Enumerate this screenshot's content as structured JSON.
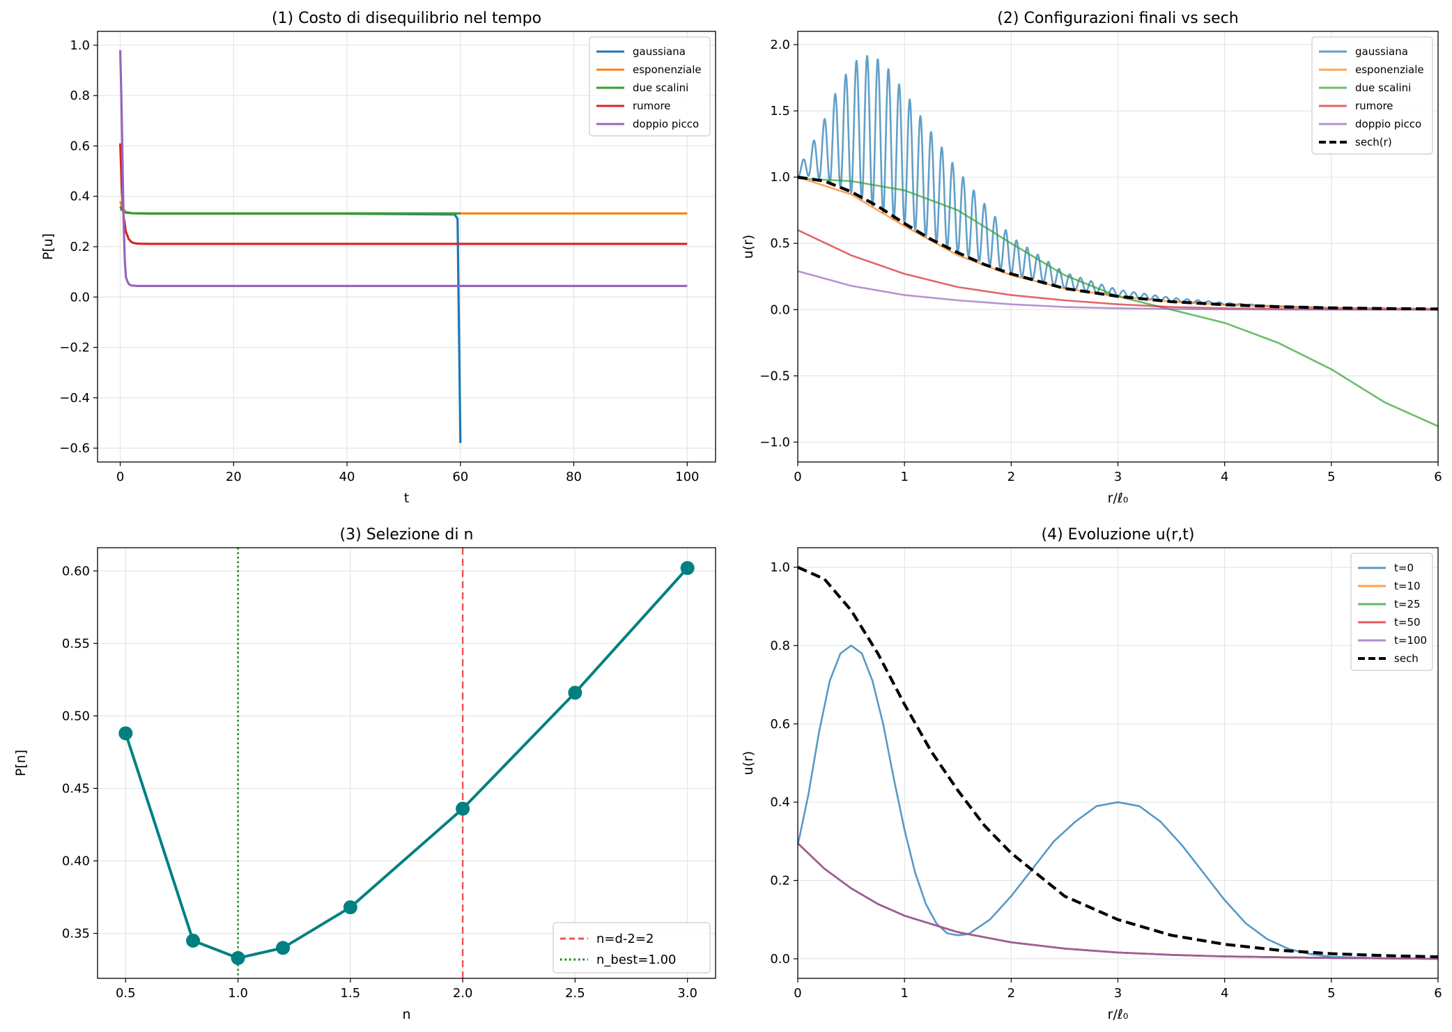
{
  "figure": {
    "background": "#ffffff"
  },
  "chart_data": [
    {
      "id": "p1",
      "type": "line",
      "title": "(1) Costo di disequilibrio nel tempo",
      "xlabel": "t",
      "ylabel": "P[u]",
      "xlim": [
        -4,
        105
      ],
      "ylim": [
        -0.655,
        1.055
      ],
      "xticks": [
        0,
        20,
        40,
        60,
        80,
        100
      ],
      "yticks": [
        -0.6,
        -0.4,
        -0.2,
        0.0,
        0.2,
        0.4,
        0.6,
        0.8,
        1.0
      ],
      "xtick_labels": [
        "0",
        "20",
        "40",
        "60",
        "80",
        "100"
      ],
      "ytick_labels": [
        "−0.6",
        "−0.4",
        "−0.2",
        "0.0",
        "0.2",
        "0.4",
        "0.6",
        "0.8",
        "1.0"
      ],
      "grid": true,
      "legend": "top-right",
      "series": [
        {
          "name": "gaussiana",
          "color": "#1f77b4",
          "x": [
            0,
            0.5,
            1,
            2,
            5,
            20,
            40,
            59,
            59.5,
            60
          ],
          "y": [
            0.35,
            0.345,
            0.338,
            0.333,
            0.331,
            0.331,
            0.331,
            0.328,
            0.31,
            -0.58
          ]
        },
        {
          "name": "esponenziale",
          "color": "#ff7f0e",
          "x": [
            0,
            0.5,
            1,
            2,
            5,
            20,
            50,
            100
          ],
          "y": [
            0.38,
            0.35,
            0.338,
            0.333,
            0.332,
            0.332,
            0.332,
            0.332
          ]
        },
        {
          "name": "due scalini",
          "color": "#2ca02c",
          "x": [
            0,
            0.5,
            1,
            2,
            5,
            20,
            50,
            60
          ],
          "y": [
            0.36,
            0.34,
            0.335,
            0.333,
            0.332,
            0.332,
            0.332,
            0.332
          ]
        },
        {
          "name": "rumore",
          "color": "#d62728",
          "x": [
            0,
            0.3,
            0.6,
            1,
            1.5,
            2,
            2.5,
            3,
            5,
            20,
            50,
            100
          ],
          "y": [
            0.61,
            0.42,
            0.32,
            0.26,
            0.23,
            0.218,
            0.214,
            0.212,
            0.211,
            0.211,
            0.211,
            0.211
          ]
        },
        {
          "name": "doppio picco",
          "color": "#9467bd",
          "x": [
            0,
            0.2,
            0.4,
            0.6,
            0.8,
            1,
            1.3,
            1.6,
            2,
            3,
            5,
            20,
            50,
            100
          ],
          "y": [
            0.98,
            0.8,
            0.55,
            0.3,
            0.15,
            0.08,
            0.06,
            0.05,
            0.046,
            0.044,
            0.044,
            0.044,
            0.044,
            0.044
          ]
        }
      ]
    },
    {
      "id": "p2",
      "type": "line",
      "title": "(2) Configurazioni finali vs sech",
      "xlabel": "r/ℓ₀",
      "ylabel": "u(r)",
      "xlim": [
        0,
        6
      ],
      "ylim": [
        -1.15,
        2.1
      ],
      "xticks": [
        0,
        1,
        2,
        3,
        4,
        5,
        6
      ],
      "yticks": [
        -1.0,
        -0.5,
        0.0,
        0.5,
        1.0,
        1.5,
        2.0
      ],
      "xtick_labels": [
        "0",
        "1",
        "2",
        "3",
        "4",
        "5",
        "6"
      ],
      "ytick_labels": [
        "−1.0",
        "−0.5",
        "0.0",
        "0.5",
        "1.0",
        "1.5",
        "2.0"
      ],
      "grid": true,
      "legend": "top-right",
      "series": [
        {
          "name": "gaussiana",
          "color": "#1f77b4",
          "alpha": 0.7,
          "x": [
            0,
            0.1,
            0.2,
            0.3,
            0.4,
            0.5,
            0.6,
            0.7,
            0.8,
            0.9,
            1.0,
            1.2,
            1.5,
            2.0,
            2.5,
            3.0,
            3.5,
            4.0,
            5.0,
            6.0
          ],
          "y": [
            1.0,
            1.01,
            0.99,
            0.96,
            0.92,
            0.88,
            0.83,
            0.78,
            0.73,
            0.68,
            0.65,
            0.55,
            0.43,
            0.27,
            0.16,
            0.1,
            0.06,
            0.037,
            0.013,
            0.005
          ],
          "osc_x": [
            0,
            0.2,
            0.4,
            0.6,
            0.8,
            1.0,
            1.2,
            1.5,
            2.0,
            2.5,
            3.0,
            3.5,
            4.0,
            4.5,
            6.0
          ],
          "osc_a": [
            0.05,
            0.35,
            0.8,
            1.1,
            1.15,
            1.0,
            0.85,
            0.62,
            0.28,
            0.12,
            0.05,
            0.03,
            0.015,
            0.0,
            0.0
          ]
        },
        {
          "name": "esponenziale",
          "color": "#ff7f0e",
          "alpha": 0.7,
          "x": [
            0,
            0.5,
            1.0,
            1.5,
            2.0,
            2.5,
            3.0,
            3.5,
            4.0,
            4.5,
            5.0,
            5.5,
            6.0
          ],
          "y": [
            1.0,
            0.87,
            0.63,
            0.41,
            0.26,
            0.16,
            0.1,
            0.06,
            0.037,
            0.022,
            0.013,
            0.008,
            0.005
          ]
        },
        {
          "name": "due scalini",
          "color": "#2ca02c",
          "alpha": 0.7,
          "x": [
            0,
            0.5,
            1.0,
            1.5,
            2.0,
            2.5,
            3.0,
            3.5,
            4.0,
            4.5,
            5.0,
            5.5,
            6.0
          ],
          "y": [
            0.99,
            0.97,
            0.9,
            0.75,
            0.5,
            0.26,
            0.1,
            0.0,
            -0.1,
            -0.25,
            -0.45,
            -0.7,
            -0.88
          ]
        },
        {
          "name": "rumore",
          "color": "#d62728",
          "alpha": 0.7,
          "x": [
            0,
            0.5,
            1.0,
            1.5,
            2.0,
            2.5,
            3.0,
            3.5,
            4.0,
            4.5,
            5.0,
            6.0
          ],
          "y": [
            0.6,
            0.41,
            0.27,
            0.17,
            0.11,
            0.07,
            0.04,
            0.02,
            0.01,
            0.005,
            0.002,
            0.0
          ]
        },
        {
          "name": "doppio picco",
          "color": "#9467bd",
          "alpha": 0.7,
          "x": [
            0,
            0.5,
            1.0,
            1.5,
            2.0,
            2.5,
            3.0,
            3.5,
            4.0,
            5.0,
            6.0
          ],
          "y": [
            0.29,
            0.18,
            0.11,
            0.07,
            0.04,
            0.02,
            0.01,
            0.005,
            0.002,
            0.0,
            0.0
          ]
        },
        {
          "name": "sech(r)",
          "color": "#000000",
          "dashed": true,
          "x": [
            0,
            0.25,
            0.5,
            0.75,
            1.0,
            1.25,
            1.5,
            1.75,
            2.0,
            2.5,
            3.0,
            3.5,
            4.0,
            4.5,
            5.0,
            5.5,
            6.0
          ],
          "y": [
            1.0,
            0.97,
            0.89,
            0.78,
            0.65,
            0.53,
            0.43,
            0.34,
            0.27,
            0.16,
            0.1,
            0.06,
            0.037,
            0.022,
            0.013,
            0.008,
            0.005
          ]
        }
      ]
    },
    {
      "id": "p3",
      "type": "line",
      "title": "(3) Selezione di n",
      "xlabel": "n",
      "ylabel": "P[n]",
      "xlim": [
        0.375,
        3.125
      ],
      "ylim": [
        0.319,
        0.616
      ],
      "xticks": [
        0.5,
        1.0,
        1.5,
        2.0,
        2.5,
        3.0
      ],
      "yticks": [
        0.35,
        0.4,
        0.45,
        0.5,
        0.55,
        0.6
      ],
      "xtick_labels": [
        "0.5",
        "1.0",
        "1.5",
        "2.0",
        "2.5",
        "3.0"
      ],
      "ytick_labels": [
        "0.35",
        "0.40",
        "0.45",
        "0.50",
        "0.55",
        "0.60"
      ],
      "grid": true,
      "legend": "bottom-right",
      "series": [
        {
          "name": "",
          "color": "#008080",
          "markers": true,
          "x": [
            0.5,
            0.8,
            1.0,
            1.2,
            1.5,
            2.0,
            2.5,
            3.0
          ],
          "y": [
            0.488,
            0.345,
            0.333,
            0.34,
            0.368,
            0.436,
            0.516,
            0.602
          ]
        }
      ],
      "vlines": [
        {
          "name": "n=d-2=2",
          "x": 2.0,
          "color": "#ef5350",
          "style": "dashed"
        },
        {
          "name": "n_best=1.00",
          "x": 1.0,
          "color": "#008000",
          "style": "dotted"
        }
      ]
    },
    {
      "id": "p4",
      "type": "line",
      "title": "(4) Evoluzione u(r,t)",
      "xlabel": "r/ℓ₀",
      "ylabel": "u(r)",
      "xlim": [
        0,
        6
      ],
      "ylim": [
        -0.05,
        1.05
      ],
      "xticks": [
        0,
        1,
        2,
        3,
        4,
        5,
        6
      ],
      "yticks": [
        0.0,
        0.2,
        0.4,
        0.6,
        0.8,
        1.0
      ],
      "xtick_labels": [
        "0",
        "1",
        "2",
        "3",
        "4",
        "5",
        "6"
      ],
      "ytick_labels": [
        "0.0",
        "0.2",
        "0.4",
        "0.6",
        "0.8",
        "1.0"
      ],
      "grid": true,
      "legend": "top-right",
      "series": [
        {
          "name": "t=0",
          "color": "#1f77b4",
          "alpha": 0.75,
          "x": [
            0,
            0.1,
            0.2,
            0.3,
            0.4,
            0.5,
            0.6,
            0.7,
            0.8,
            0.9,
            1.0,
            1.1,
            1.2,
            1.3,
            1.4,
            1.5,
            1.6,
            1.8,
            2.0,
            2.2,
            2.4,
            2.6,
            2.8,
            3.0,
            3.2,
            3.4,
            3.6,
            3.8,
            4.0,
            4.2,
            4.4,
            4.6,
            4.8,
            5.0,
            5.5,
            6.0
          ],
          "y": [
            0.29,
            0.42,
            0.58,
            0.71,
            0.78,
            0.8,
            0.78,
            0.71,
            0.6,
            0.46,
            0.33,
            0.22,
            0.14,
            0.09,
            0.065,
            0.06,
            0.063,
            0.1,
            0.16,
            0.23,
            0.3,
            0.35,
            0.39,
            0.4,
            0.39,
            0.35,
            0.29,
            0.22,
            0.15,
            0.09,
            0.05,
            0.025,
            0.012,
            0.005,
            0.001,
            0.0
          ]
        },
        {
          "name": "t=10",
          "color": "#ff7f0e",
          "alpha": 0.75,
          "x": [
            0,
            0.25,
            0.5,
            0.75,
            1.0,
            1.5,
            2.0,
            2.5,
            3.0,
            3.5,
            4.0,
            4.5,
            5.0,
            5.5,
            6.0
          ],
          "y": [
            0.295,
            0.23,
            0.18,
            0.14,
            0.11,
            0.068,
            0.042,
            0.026,
            0.016,
            0.01,
            0.006,
            0.004,
            0.002,
            0.001,
            0.0
          ]
        },
        {
          "name": "t=25",
          "color": "#2ca02c",
          "alpha": 0.75,
          "x": [
            0,
            0.25,
            0.5,
            0.75,
            1.0,
            1.5,
            2.0,
            2.5,
            3.0,
            3.5,
            4.0,
            4.5,
            5.0,
            5.5,
            6.0
          ],
          "y": [
            0.295,
            0.23,
            0.18,
            0.14,
            0.11,
            0.068,
            0.042,
            0.026,
            0.016,
            0.01,
            0.006,
            0.004,
            0.002,
            0.001,
            0.0
          ]
        },
        {
          "name": "t=50",
          "color": "#d62728",
          "alpha": 0.75,
          "x": [
            0,
            0.25,
            0.5,
            0.75,
            1.0,
            1.5,
            2.0,
            2.5,
            3.0,
            3.5,
            4.0,
            4.5,
            5.0,
            5.5,
            6.0
          ],
          "y": [
            0.295,
            0.23,
            0.18,
            0.14,
            0.11,
            0.068,
            0.042,
            0.026,
            0.016,
            0.01,
            0.006,
            0.004,
            0.002,
            0.001,
            0.0
          ]
        },
        {
          "name": "t=100",
          "color": "#9467bd",
          "alpha": 0.75,
          "x": [
            0,
            0.25,
            0.5,
            0.75,
            1.0,
            1.5,
            2.0,
            2.5,
            3.0,
            3.5,
            4.0,
            4.5,
            5.0,
            5.5,
            6.0
          ],
          "y": [
            0.295,
            0.23,
            0.18,
            0.14,
            0.11,
            0.068,
            0.042,
            0.026,
            0.016,
            0.01,
            0.006,
            0.004,
            0.002,
            0.001,
            0.0
          ]
        },
        {
          "name": "sech",
          "color": "#000000",
          "dashed": true,
          "x": [
            0,
            0.25,
            0.5,
            0.75,
            1.0,
            1.25,
            1.5,
            1.75,
            2.0,
            2.5,
            3.0,
            3.5,
            4.0,
            4.5,
            5.0,
            5.5,
            6.0
          ],
          "y": [
            1.0,
            0.97,
            0.89,
            0.78,
            0.65,
            0.53,
            0.43,
            0.34,
            0.27,
            0.16,
            0.1,
            0.06,
            0.037,
            0.022,
            0.013,
            0.008,
            0.005
          ]
        }
      ]
    }
  ]
}
